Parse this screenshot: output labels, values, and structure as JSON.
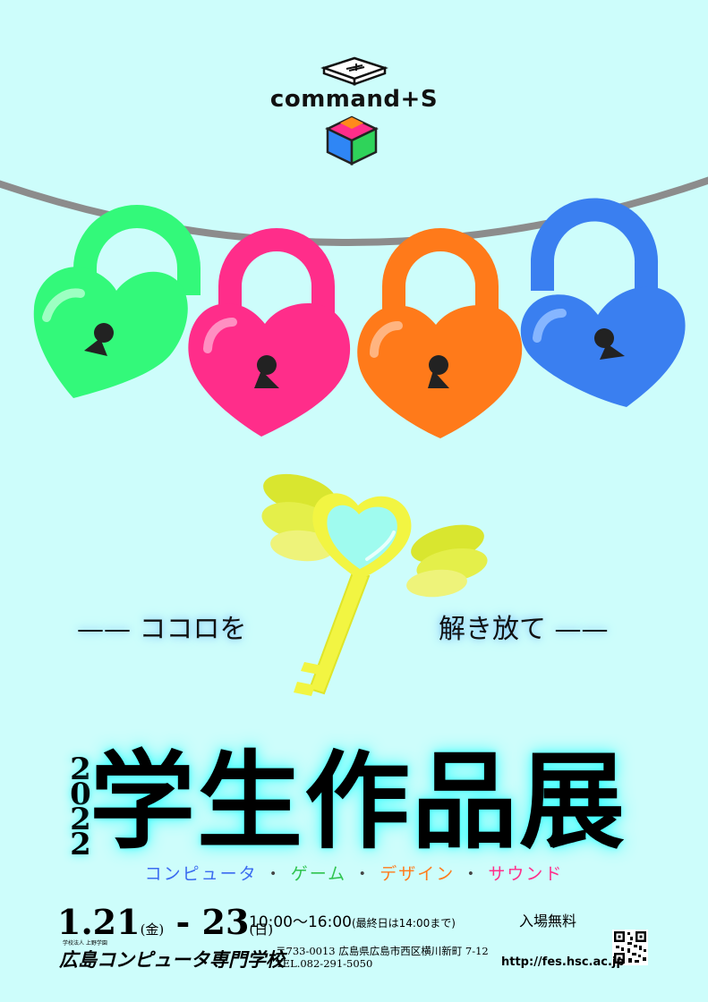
{
  "logo": {
    "text": "command+S",
    "icons": [
      "keyboard-key-icon",
      "color-cube-icon"
    ]
  },
  "tagline": {
    "left": "—— ココロを",
    "right": "解き放て ——"
  },
  "event": {
    "year_digits": [
      "2",
      "0",
      "2",
      "2"
    ],
    "title": "学生作品展",
    "genres": [
      {
        "text": "コンピュータ",
        "color": "#3a6bf0"
      },
      {
        "text": "・",
        "color": "#444444"
      },
      {
        "text": "ゲーム",
        "color": "#2fc44f"
      },
      {
        "text": "・",
        "color": "#444444"
      },
      {
        "text": "デザイン",
        "color": "#ff7a1a"
      },
      {
        "text": "・",
        "color": "#444444"
      },
      {
        "text": "サウンド",
        "color": "#ff2d8a"
      }
    ],
    "date_start": "1.21",
    "date_start_day": "(金)",
    "date_sep": "-",
    "date_end": "23",
    "date_end_day": "(日)",
    "time": "10:00～16:00",
    "time_note": "(最終日は14:00まで)",
    "admission": "入場無料"
  },
  "school": {
    "corp": "学校法人 上野学園",
    "name": "広島コンピュータ専門学校",
    "address": "〒733-0013 広島県広島市西区横川新町 7-12",
    "tel": "TEL.082-291-5050",
    "url": "http://fes.hsc.ac.jp"
  },
  "colors": {
    "background": "#cdfdfb",
    "lock_green": "#33f97a",
    "lock_pink": "#ff2d8a",
    "lock_orange": "#ff7a1a",
    "lock_blue": "#3a7ff0",
    "key": "#f2f542",
    "wings": "#e4ef4a",
    "wire": "#8c8c8c"
  }
}
